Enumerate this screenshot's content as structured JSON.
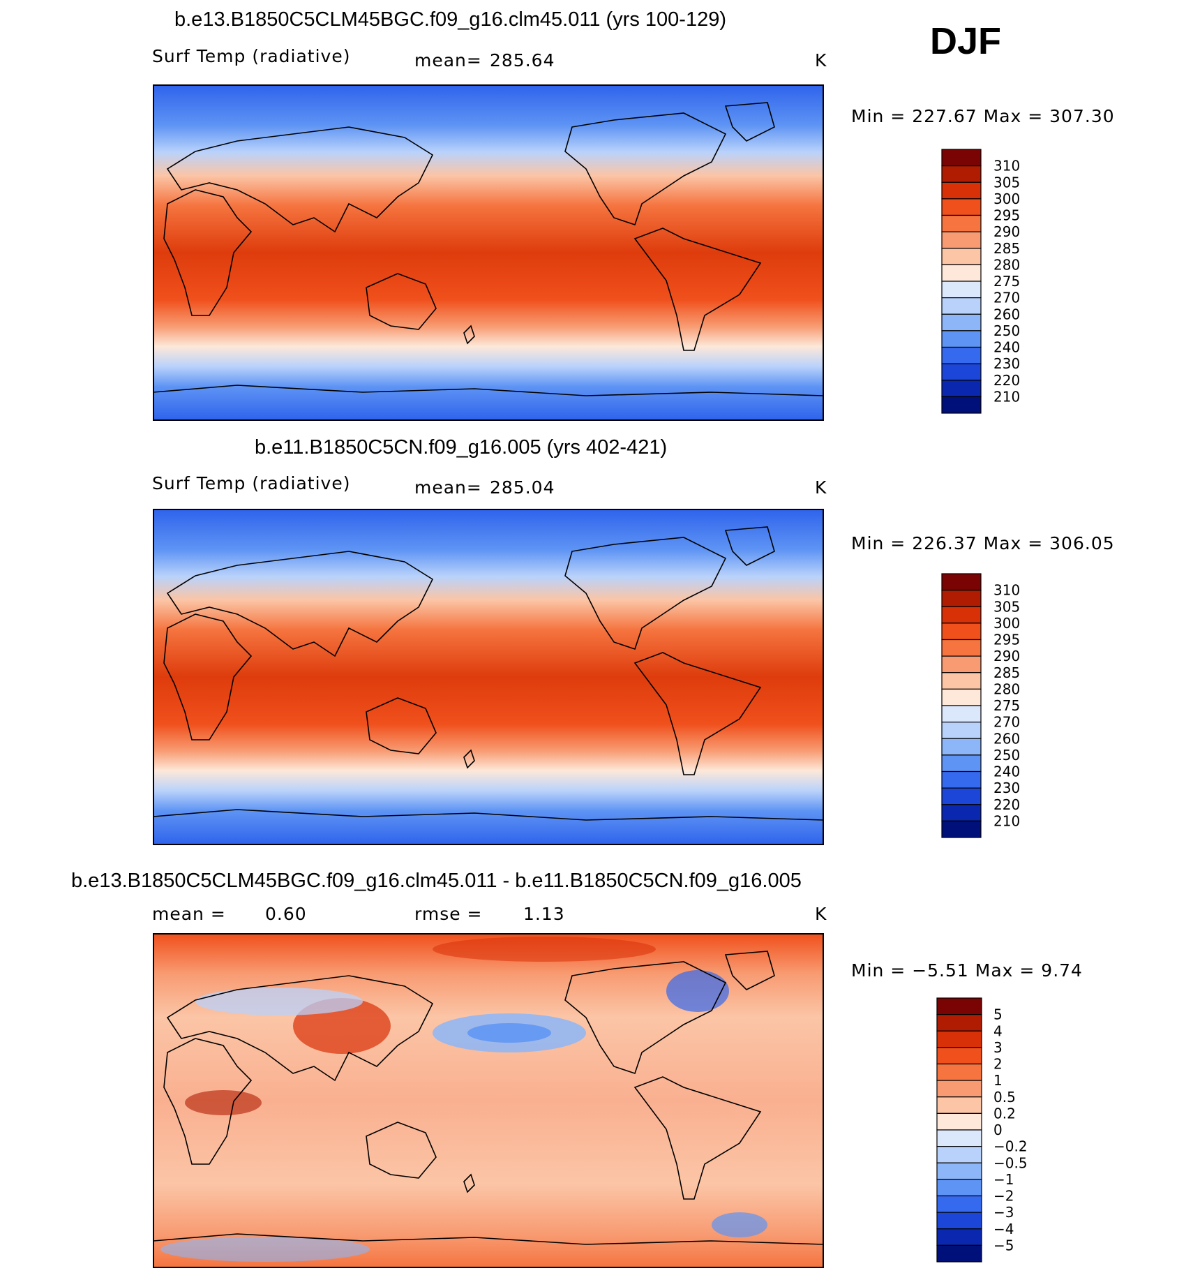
{
  "season": "DJF",
  "chart_data": [
    {
      "type": "heatmap",
      "title": "b.e13.B1850C5CLM45BGC.f09_g16.clm45.011 (yrs 100-129)",
      "variable": "Surf Temp (radiative)",
      "mean_label": "mean=",
      "mean_value": "285.64",
      "units": "K",
      "minmax": "Min = 227.67 Max = 307.30",
      "min": 227.67,
      "max": 307.3,
      "colorbar": {
        "ticks": [
          "310",
          "305",
          "300",
          "295",
          "290",
          "285",
          "280",
          "275",
          "270",
          "260",
          "250",
          "240",
          "230",
          "220",
          "210"
        ],
        "colors": [
          "#7a0403",
          "#b01c02",
          "#d83007",
          "#f0501c",
          "#f5743f",
          "#f89b72",
          "#fbc5a6",
          "#fde8d9",
          "#dbe8fb",
          "#b9d2fb",
          "#8cb6f8",
          "#5e94f4",
          "#3569ee",
          "#1b46d8",
          "#0a27b0",
          "#00107a"
        ]
      }
    },
    {
      "type": "heatmap",
      "title": "b.e11.B1850C5CN.f09_g16.005 (yrs 402-421)",
      "variable": "Surf Temp (radiative)",
      "mean_label": "mean=",
      "mean_value": "285.04",
      "units": "K",
      "minmax": "Min = 226.37 Max = 306.05",
      "min": 226.37,
      "max": 306.05,
      "colorbar": {
        "ticks": [
          "310",
          "305",
          "300",
          "295",
          "290",
          "285",
          "280",
          "275",
          "270",
          "260",
          "250",
          "240",
          "230",
          "220",
          "210"
        ],
        "colors": [
          "#7a0403",
          "#b01c02",
          "#d83007",
          "#f0501c",
          "#f5743f",
          "#f89b72",
          "#fbc5a6",
          "#fde8d9",
          "#dbe8fb",
          "#b9d2fb",
          "#8cb6f8",
          "#5e94f4",
          "#3569ee",
          "#1b46d8",
          "#0a27b0",
          "#00107a"
        ]
      }
    },
    {
      "type": "heatmap",
      "title": "b.e13.B1850C5CLM45BGC.f09_g16.clm45.011 - b.e11.B1850C5CN.f09_g16.005",
      "mean_label": "mean =",
      "mean_value": "0.60",
      "rmse_label": "rmse =",
      "rmse_value": "1.13",
      "units": "K",
      "minmax": "Min = −5.51 Max = 9.74",
      "min": -5.51,
      "max": 9.74,
      "colorbar": {
        "ticks": [
          "5",
          "4",
          "3",
          "2",
          "1",
          "0.5",
          "0.2",
          "0",
          "−0.2",
          "−0.5",
          "−1",
          "−2",
          "−3",
          "−4",
          "−5"
        ],
        "colors": [
          "#7a0403",
          "#b01c02",
          "#d83007",
          "#f0501c",
          "#f5743f",
          "#f89b72",
          "#fbc5a6",
          "#fde8d9",
          "#dbe8fb",
          "#b9d2fb",
          "#8cb6f8",
          "#5e94f4",
          "#3569ee",
          "#1b46d8",
          "#0a27b0",
          "#00107a"
        ]
      }
    }
  ]
}
